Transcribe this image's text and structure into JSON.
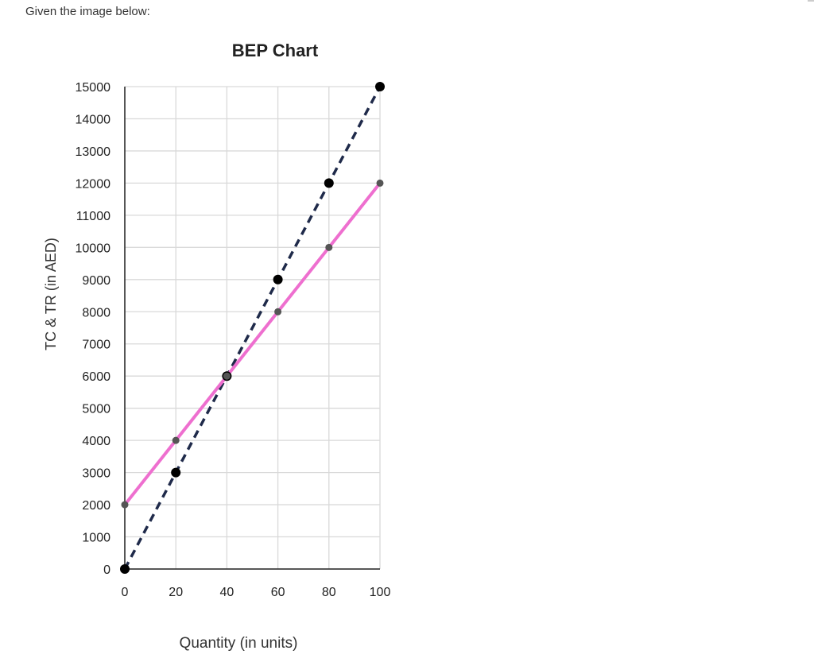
{
  "page": {
    "intro_text": "Given the image below:"
  },
  "chart_data": {
    "type": "line",
    "title": "BEP Chart",
    "xlabel": "Quantity (in units)",
    "ylabel": "TC & TR (in AED)",
    "x": [
      0,
      20,
      40,
      60,
      80,
      100
    ],
    "xlim": [
      0,
      100
    ],
    "ylim": [
      0,
      15000
    ],
    "x_ticks": [
      "0",
      "20",
      "40",
      "60",
      "80",
      "100"
    ],
    "y_ticks": [
      "0",
      "1000",
      "2000",
      "3000",
      "4000",
      "5000",
      "6000",
      "7000",
      "8000",
      "9000",
      "10000",
      "11000",
      "12000",
      "13000",
      "14000",
      "15000"
    ],
    "grid": true,
    "legend": "none",
    "series": [
      {
        "key": "tr",
        "values": [
          0,
          3000,
          6000,
          9000,
          12000,
          15000
        ],
        "style": "dashed",
        "color": "#1f2a4a",
        "marker_color": "#000000"
      },
      {
        "key": "tc",
        "values": [
          2000,
          4000,
          6000,
          8000,
          10000,
          12000
        ],
        "style": "solid",
        "color": "#ee6fcf",
        "marker_color": "#555555"
      }
    ]
  }
}
